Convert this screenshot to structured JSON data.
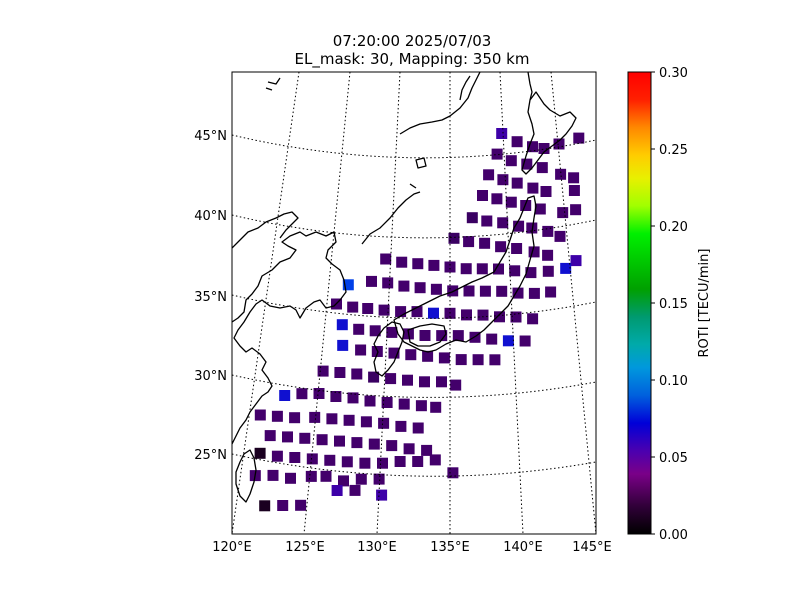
{
  "chart_data": {
    "type": "heatmap",
    "title": "07:20:00 2025/07/03",
    "subtitle": "EL_mask: 30, Mapping: 350 km",
    "projection": "conic",
    "lon_range": [
      120,
      145
    ],
    "lat_range": [
      20,
      49
    ],
    "grid": true,
    "lon_ticks": [
      "120°E",
      "125°E",
      "130°E",
      "135°E",
      "140°E",
      "145°E"
    ],
    "lat_ticks": [
      "25°N",
      "30°N",
      "35°N",
      "40°N",
      "45°N"
    ],
    "colorbar": {
      "label": "ROTI [TECU/min]",
      "range": [
        0.0,
        0.3
      ],
      "ticks": [
        "0.00",
        "0.05",
        "0.10",
        "0.15",
        "0.20",
        "0.25",
        "0.30"
      ],
      "colormap": "nipy_spectral"
    },
    "cell_size_deg": 0.9,
    "series": [
      {
        "points": [
          {
            "lon": 139.1,
            "lat": 44.9,
            "v": 0.05
          },
          {
            "lon": 140.3,
            "lat": 44.4,
            "v": 0.04
          },
          {
            "lon": 141.5,
            "lat": 44.1,
            "v": 0.04
          },
          {
            "lon": 142.4,
            "lat": 44.0,
            "v": 0.04
          },
          {
            "lon": 143.6,
            "lat": 44.3,
            "v": 0.04
          },
          {
            "lon": 145.2,
            "lat": 44.7,
            "v": 0.04
          },
          {
            "lon": 138.7,
            "lat": 43.6,
            "v": 0.04
          },
          {
            "lon": 139.8,
            "lat": 43.2,
            "v": 0.04
          },
          {
            "lon": 141.0,
            "lat": 43.0,
            "v": 0.04
          },
          {
            "lon": 142.2,
            "lat": 42.8,
            "v": 0.04
          },
          {
            "lon": 143.6,
            "lat": 42.4,
            "v": 0.04
          },
          {
            "lon": 144.6,
            "lat": 42.2,
            "v": 0.04
          },
          {
            "lon": 138.0,
            "lat": 42.3,
            "v": 0.04
          },
          {
            "lon": 139.1,
            "lat": 42.0,
            "v": 0.04
          },
          {
            "lon": 140.2,
            "lat": 41.8,
            "v": 0.04
          },
          {
            "lon": 141.4,
            "lat": 41.5,
            "v": 0.04
          },
          {
            "lon": 142.4,
            "lat": 41.3,
            "v": 0.04
          },
          {
            "lon": 144.6,
            "lat": 41.4,
            "v": 0.04
          },
          {
            "lon": 137.5,
            "lat": 41.0,
            "v": 0.04
          },
          {
            "lon": 138.6,
            "lat": 40.8,
            "v": 0.04
          },
          {
            "lon": 139.7,
            "lat": 40.6,
            "v": 0.04
          },
          {
            "lon": 140.8,
            "lat": 40.4,
            "v": 0.04
          },
          {
            "lon": 141.9,
            "lat": 40.2,
            "v": 0.04
          },
          {
            "lon": 143.6,
            "lat": 40.0,
            "v": 0.04
          },
          {
            "lon": 144.6,
            "lat": 40.2,
            "v": 0.04
          },
          {
            "lon": 136.7,
            "lat": 39.6,
            "v": 0.03
          },
          {
            "lon": 137.8,
            "lat": 39.4,
            "v": 0.04
          },
          {
            "lon": 139.0,
            "lat": 39.3,
            "v": 0.04
          },
          {
            "lon": 140.2,
            "lat": 39.1,
            "v": 0.04
          },
          {
            "lon": 141.2,
            "lat": 39.0,
            "v": 0.04
          },
          {
            "lon": 142.4,
            "lat": 38.8,
            "v": 0.04
          },
          {
            "lon": 143.3,
            "lat": 38.5,
            "v": 0.04
          },
          {
            "lon": 135.3,
            "lat": 38.3,
            "v": 0.03
          },
          {
            "lon": 136.4,
            "lat": 38.1,
            "v": 0.04
          },
          {
            "lon": 137.6,
            "lat": 38.0,
            "v": 0.04
          },
          {
            "lon": 138.8,
            "lat": 37.8,
            "v": 0.04
          },
          {
            "lon": 140.0,
            "lat": 37.7,
            "v": 0.04
          },
          {
            "lon": 141.3,
            "lat": 37.5,
            "v": 0.04
          },
          {
            "lon": 142.3,
            "lat": 37.3,
            "v": 0.04
          },
          {
            "lon": 144.4,
            "lat": 37.0,
            "v": 0.05
          },
          {
            "lon": 130.2,
            "lat": 37.0,
            "v": 0.04
          },
          {
            "lon": 131.4,
            "lat": 36.8,
            "v": 0.04
          },
          {
            "lon": 132.6,
            "lat": 36.7,
            "v": 0.04
          },
          {
            "lon": 133.8,
            "lat": 36.6,
            "v": 0.04
          },
          {
            "lon": 135.0,
            "lat": 36.5,
            "v": 0.04
          },
          {
            "lon": 136.2,
            "lat": 36.4,
            "v": 0.04
          },
          {
            "lon": 137.4,
            "lat": 36.4,
            "v": 0.04
          },
          {
            "lon": 138.6,
            "lat": 36.4,
            "v": 0.04
          },
          {
            "lon": 139.8,
            "lat": 36.3,
            "v": 0.04
          },
          {
            "lon": 141.0,
            "lat": 36.2,
            "v": 0.04
          },
          {
            "lon": 142.3,
            "lat": 36.3,
            "v": 0.04
          },
          {
            "lon": 143.6,
            "lat": 36.5,
            "v": 0.06
          },
          {
            "lon": 127.5,
            "lat": 35.4,
            "v": 0.07
          },
          {
            "lon": 129.2,
            "lat": 35.6,
            "v": 0.04
          },
          {
            "lon": 130.4,
            "lat": 35.5,
            "v": 0.04
          },
          {
            "lon": 131.6,
            "lat": 35.3,
            "v": 0.04
          },
          {
            "lon": 132.8,
            "lat": 35.2,
            "v": 0.04
          },
          {
            "lon": 134.0,
            "lat": 35.1,
            "v": 0.04
          },
          {
            "lon": 135.2,
            "lat": 35.0,
            "v": 0.04
          },
          {
            "lon": 136.4,
            "lat": 35.0,
            "v": 0.04
          },
          {
            "lon": 137.6,
            "lat": 35.0,
            "v": 0.04
          },
          {
            "lon": 138.8,
            "lat": 35.0,
            "v": 0.04
          },
          {
            "lon": 140.0,
            "lat": 34.9,
            "v": 0.04
          },
          {
            "lon": 141.2,
            "lat": 34.9,
            "v": 0.04
          },
          {
            "lon": 142.4,
            "lat": 35.0,
            "v": 0.04
          },
          {
            "lon": 126.7,
            "lat": 34.2,
            "v": 0.04
          },
          {
            "lon": 127.9,
            "lat": 34.0,
            "v": 0.04
          },
          {
            "lon": 129.0,
            "lat": 33.9,
            "v": 0.04
          },
          {
            "lon": 130.2,
            "lat": 33.8,
            "v": 0.04
          },
          {
            "lon": 131.4,
            "lat": 33.7,
            "v": 0.04
          },
          {
            "lon": 132.6,
            "lat": 33.7,
            "v": 0.04
          },
          {
            "lon": 133.8,
            "lat": 33.6,
            "v": 0.06
          },
          {
            "lon": 135.0,
            "lat": 33.6,
            "v": 0.04
          },
          {
            "lon": 136.2,
            "lat": 33.5,
            "v": 0.04
          },
          {
            "lon": 137.4,
            "lat": 33.5,
            "v": 0.04
          },
          {
            "lon": 138.6,
            "lat": 33.4,
            "v": 0.04
          },
          {
            "lon": 139.8,
            "lat": 33.4,
            "v": 0.04
          },
          {
            "lon": 141.0,
            "lat": 33.3,
            "v": 0.04
          },
          {
            "lon": 127.2,
            "lat": 32.9,
            "v": 0.06
          },
          {
            "lon": 128.4,
            "lat": 32.6,
            "v": 0.04
          },
          {
            "lon": 129.6,
            "lat": 32.5,
            "v": 0.04
          },
          {
            "lon": 130.8,
            "lat": 32.4,
            "v": 0.04
          },
          {
            "lon": 132.0,
            "lat": 32.3,
            "v": 0.04
          },
          {
            "lon": 133.2,
            "lat": 32.2,
            "v": 0.04
          },
          {
            "lon": 134.4,
            "lat": 32.2,
            "v": 0.04
          },
          {
            "lon": 135.6,
            "lat": 32.2,
            "v": 0.04
          },
          {
            "lon": 136.8,
            "lat": 32.1,
            "v": 0.04
          },
          {
            "lon": 138.0,
            "lat": 32.0,
            "v": 0.04
          },
          {
            "lon": 139.2,
            "lat": 31.9,
            "v": 0.06
          },
          {
            "lon": 140.4,
            "lat": 31.9,
            "v": 0.04
          },
          {
            "lon": 127.3,
            "lat": 31.6,
            "v": 0.06
          },
          {
            "lon": 128.6,
            "lat": 31.3,
            "v": 0.04
          },
          {
            "lon": 129.8,
            "lat": 31.2,
            "v": 0.04
          },
          {
            "lon": 131.0,
            "lat": 31.1,
            "v": 0.04
          },
          {
            "lon": 132.2,
            "lat": 31.0,
            "v": 0.04
          },
          {
            "lon": 133.4,
            "lat": 30.9,
            "v": 0.04
          },
          {
            "lon": 134.6,
            "lat": 30.8,
            "v": 0.04
          },
          {
            "lon": 135.8,
            "lat": 30.7,
            "v": 0.04
          },
          {
            "lon": 137.0,
            "lat": 30.7,
            "v": 0.04
          },
          {
            "lon": 138.2,
            "lat": 30.7,
            "v": 0.04
          },
          {
            "lon": 126.0,
            "lat": 30.0,
            "v": 0.04
          },
          {
            "lon": 127.2,
            "lat": 29.9,
            "v": 0.04
          },
          {
            "lon": 128.4,
            "lat": 29.8,
            "v": 0.04
          },
          {
            "lon": 129.6,
            "lat": 29.6,
            "v": 0.03
          },
          {
            "lon": 130.8,
            "lat": 29.5,
            "v": 0.04
          },
          {
            "lon": 132.0,
            "lat": 29.4,
            "v": 0.04
          },
          {
            "lon": 133.2,
            "lat": 29.3,
            "v": 0.04
          },
          {
            "lon": 134.4,
            "lat": 29.3,
            "v": 0.04
          },
          {
            "lon": 135.4,
            "lat": 29.1,
            "v": 0.04
          },
          {
            "lon": 123.4,
            "lat": 28.5,
            "v": 0.06
          },
          {
            "lon": 124.6,
            "lat": 28.6,
            "v": 0.04
          },
          {
            "lon": 125.8,
            "lat": 28.6,
            "v": 0.04
          },
          {
            "lon": 127.0,
            "lat": 28.4,
            "v": 0.04
          },
          {
            "lon": 128.2,
            "lat": 28.3,
            "v": 0.04
          },
          {
            "lon": 129.4,
            "lat": 28.1,
            "v": 0.04
          },
          {
            "lon": 130.6,
            "lat": 28.0,
            "v": 0.04
          },
          {
            "lon": 131.8,
            "lat": 27.9,
            "v": 0.04
          },
          {
            "lon": 133.0,
            "lat": 27.8,
            "v": 0.04
          },
          {
            "lon": 134.0,
            "lat": 27.7,
            "v": 0.04
          },
          {
            "lon": 121.8,
            "lat": 27.3,
            "v": 0.04
          },
          {
            "lon": 123.0,
            "lat": 27.2,
            "v": 0.04
          },
          {
            "lon": 124.2,
            "lat": 27.1,
            "v": 0.04
          },
          {
            "lon": 125.6,
            "lat": 27.1,
            "v": 0.04
          },
          {
            "lon": 126.8,
            "lat": 27.0,
            "v": 0.04
          },
          {
            "lon": 128.0,
            "lat": 26.9,
            "v": 0.04
          },
          {
            "lon": 129.2,
            "lat": 26.8,
            "v": 0.04
          },
          {
            "lon": 130.4,
            "lat": 26.7,
            "v": 0.04
          },
          {
            "lon": 131.6,
            "lat": 26.5,
            "v": 0.04
          },
          {
            "lon": 132.8,
            "lat": 26.4,
            "v": 0.04
          },
          {
            "lon": 122.6,
            "lat": 26.0,
            "v": 0.04
          },
          {
            "lon": 123.8,
            "lat": 25.9,
            "v": 0.04
          },
          {
            "lon": 125.0,
            "lat": 25.8,
            "v": 0.04
          },
          {
            "lon": 126.2,
            "lat": 25.7,
            "v": 0.04
          },
          {
            "lon": 127.4,
            "lat": 25.6,
            "v": 0.04
          },
          {
            "lon": 128.6,
            "lat": 25.5,
            "v": 0.04
          },
          {
            "lon": 129.8,
            "lat": 25.4,
            "v": 0.04
          },
          {
            "lon": 131.0,
            "lat": 25.3,
            "v": 0.04
          },
          {
            "lon": 132.2,
            "lat": 25.1,
            "v": 0.04
          },
          {
            "lon": 133.4,
            "lat": 25.0,
            "v": 0.04
          },
          {
            "lon": 122.0,
            "lat": 24.9,
            "v": 0.01
          },
          {
            "lon": 123.2,
            "lat": 24.7,
            "v": 0.04
          },
          {
            "lon": 124.4,
            "lat": 24.6,
            "v": 0.04
          },
          {
            "lon": 125.6,
            "lat": 24.5,
            "v": 0.04
          },
          {
            "lon": 126.8,
            "lat": 24.4,
            "v": 0.04
          },
          {
            "lon": 128.0,
            "lat": 24.3,
            "v": 0.04
          },
          {
            "lon": 129.2,
            "lat": 24.2,
            "v": 0.04
          },
          {
            "lon": 130.4,
            "lat": 24.2,
            "v": 0.04
          },
          {
            "lon": 131.6,
            "lat": 24.3,
            "v": 0.04
          },
          {
            "lon": 132.8,
            "lat": 24.3,
            "v": 0.04
          },
          {
            "lon": 134.0,
            "lat": 24.4,
            "v": 0.04
          },
          {
            "lon": 121.8,
            "lat": 23.5,
            "v": 0.04
          },
          {
            "lon": 123.0,
            "lat": 23.5,
            "v": 0.04
          },
          {
            "lon": 124.2,
            "lat": 23.3,
            "v": 0.04
          },
          {
            "lon": 125.6,
            "lat": 23.4,
            "v": 0.04
          },
          {
            "lon": 126.6,
            "lat": 23.4,
            "v": 0.04
          },
          {
            "lon": 127.8,
            "lat": 23.1,
            "v": 0.04
          },
          {
            "lon": 129.0,
            "lat": 23.2,
            "v": 0.04
          },
          {
            "lon": 130.2,
            "lat": 23.2,
            "v": 0.04
          },
          {
            "lon": 135.2,
            "lat": 23.6,
            "v": 0.04
          },
          {
            "lon": 127.4,
            "lat": 22.5,
            "v": 0.05
          },
          {
            "lon": 128.6,
            "lat": 22.5,
            "v": 0.04
          },
          {
            "lon": 130.4,
            "lat": 22.2,
            "v": 0.05
          },
          {
            "lon": 122.6,
            "lat": 21.6,
            "v": 0.01
          },
          {
            "lon": 123.8,
            "lat": 21.6,
            "v": 0.04
          },
          {
            "lon": 125.0,
            "lat": 21.6,
            "v": 0.04
          }
        ]
      }
    ]
  }
}
